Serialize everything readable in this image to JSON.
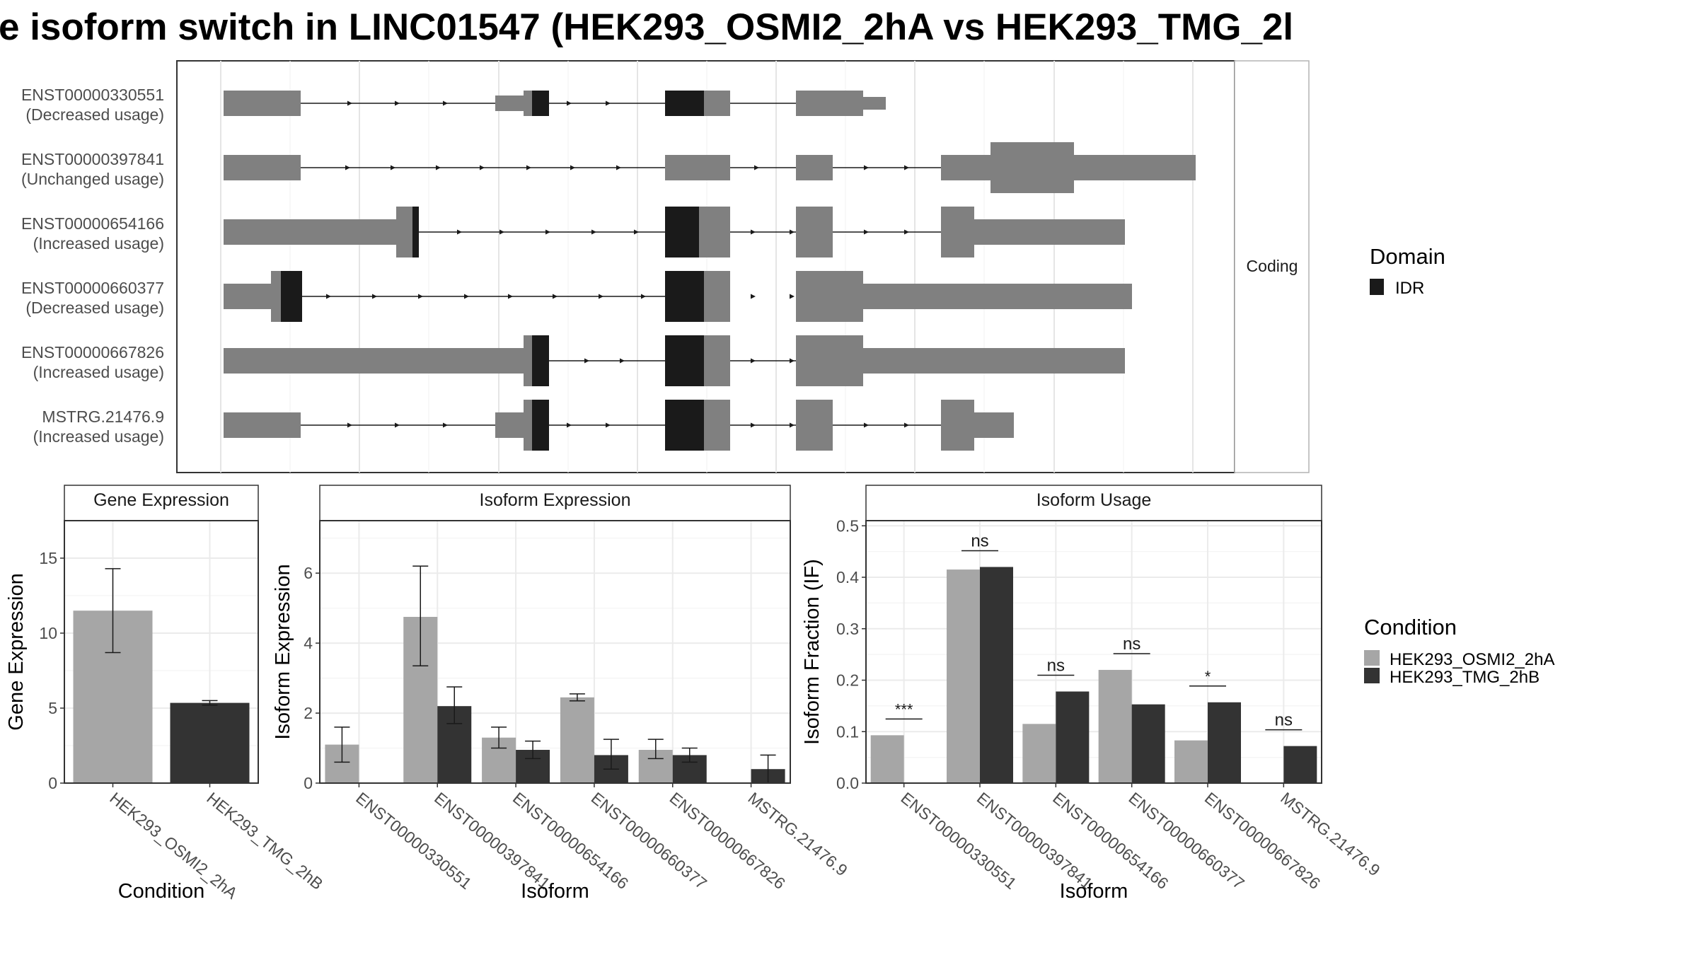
{
  "title": "e isoform switch in LINC01547 (HEK293_OSMI2_2hA vs HEK293_TMG_2l",
  "colors": {
    "exon": "#808080",
    "idr": "#1a1a1a",
    "cond_a": "#a6a6a6",
    "cond_b": "#333333",
    "strip_bg": "#ffffff",
    "grid": "#ebebeb",
    "panel_border": "#333333"
  },
  "structure": {
    "strip_label": "Coding",
    "transcripts": [
      {
        "id": "ENST00000330551",
        "usage": "(Decreased usage)"
      },
      {
        "id": "ENST00000397841",
        "usage": "(Unchanged usage)"
      },
      {
        "id": "ENST00000654166",
        "usage": "(Increased usage)"
      },
      {
        "id": "ENST00000660377",
        "usage": "(Decreased usage)"
      },
      {
        "id": "ENST00000667826",
        "usage": "(Increased usage)"
      },
      {
        "id": "MSTRG.21476.9",
        "usage": "(Increased usage)"
      }
    ]
  },
  "legend_domain": {
    "title": "Domain",
    "items": [
      {
        "label": "IDR",
        "color": "#1a1a1a"
      }
    ]
  },
  "legend_condition": {
    "title": "Condition",
    "items": [
      {
        "label": "HEK293_OSMI2_2hA",
        "color": "#a6a6a6"
      },
      {
        "label": "HEK293_TMG_2hB",
        "color": "#333333"
      }
    ]
  },
  "chart_data": [
    {
      "type": "bar",
      "title": "Gene Expression",
      "xlabel": "Condition",
      "ylabel": "Gene Expression",
      "categories": [
        "HEK293_OSMI2_2hA",
        "HEK293_TMG_2hB"
      ],
      "values": [
        11.5,
        5.35
      ],
      "err_low": [
        8.7,
        5.2
      ],
      "err_high": [
        14.3,
        5.5
      ],
      "ylim": [
        0,
        17.5
      ],
      "yticks": [
        0,
        5,
        10,
        15
      ]
    },
    {
      "type": "bar",
      "title": "Isoform Expression",
      "xlabel": "Isoform",
      "ylabel": "Isoform Expression",
      "ylim": [
        0,
        7.5
      ],
      "yticks": [
        0,
        2,
        4,
        6
      ],
      "categories": [
        "ENST00000330551",
        "ENST00000397841",
        "ENST00000654166",
        "ENST00000660377",
        "ENST00000667826",
        "MSTRG.21476.9"
      ],
      "series": [
        {
          "name": "HEK293_OSMI2_2hA",
          "values": [
            1.1,
            4.75,
            1.3,
            2.45,
            0.95,
            0.0
          ],
          "err_low": [
            0.6,
            3.35,
            1.0,
            2.35,
            0.7,
            0.0
          ],
          "err_high": [
            1.6,
            6.2,
            1.6,
            2.55,
            1.25,
            0.0
          ]
        },
        {
          "name": "HEK293_TMG_2hB",
          "values": [
            0.0,
            2.2,
            0.95,
            0.8,
            0.8,
            0.4
          ],
          "err_low": [
            0.0,
            1.7,
            0.7,
            0.4,
            0.6,
            0.0
          ],
          "err_high": [
            0.0,
            2.75,
            1.2,
            1.25,
            1.0,
            0.8
          ]
        }
      ]
    },
    {
      "type": "bar",
      "title": "Isoform Usage",
      "xlabel": "Isoform",
      "ylabel": "Isoform Fraction (IF)",
      "ylim": [
        0,
        0.51
      ],
      "yticks": [
        0.0,
        0.1,
        0.2,
        0.3,
        0.4,
        0.5
      ],
      "categories": [
        "ENST00000330551",
        "ENST00000397841",
        "ENST00000654166",
        "ENST00000660377",
        "ENST00000667826",
        "MSTRG.21476.9"
      ],
      "series": [
        {
          "name": "HEK293_OSMI2_2hA",
          "values": [
            0.093,
            0.415,
            0.115,
            0.22,
            0.083,
            0.0
          ]
        },
        {
          "name": "HEK293_TMG_2hB",
          "values": [
            0.0,
            0.42,
            0.178,
            0.153,
            0.157,
            0.072
          ]
        }
      ],
      "significance": [
        "***",
        "ns",
        "ns",
        "ns",
        "*",
        "ns"
      ]
    }
  ]
}
